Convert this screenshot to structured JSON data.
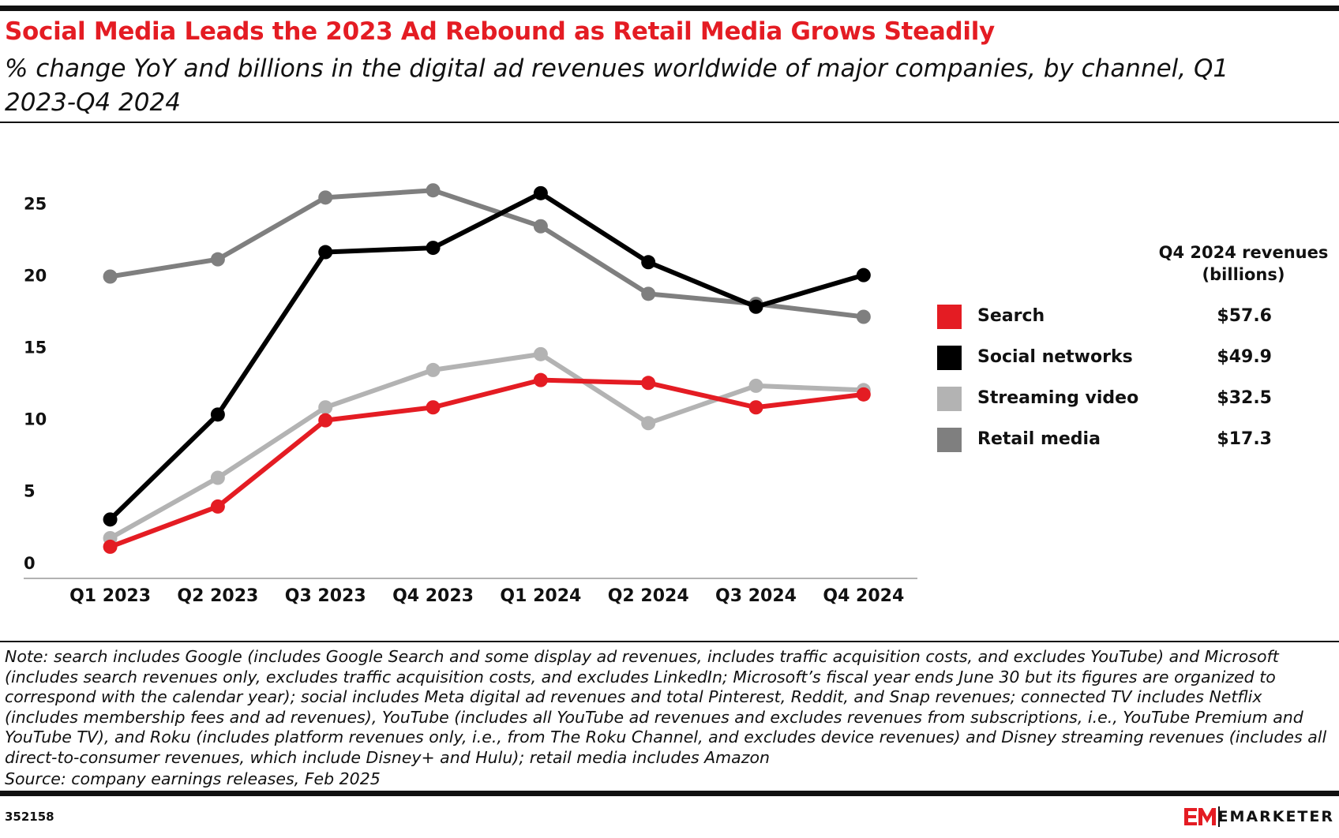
{
  "chart_data": {
    "type": "line",
    "title": "Social Media Leads the 2023 Ad Rebound as Retail Media Grows Steadily",
    "subtitle": "% change YoY and billions in the digital ad revenues worldwide of major companies, by channel, Q1 2023-Q4 2024",
    "categories": [
      "Q1 2023",
      "Q2 2023",
      "Q3 2023",
      "Q4 2023",
      "Q1 2024",
      "Q2 2024",
      "Q3 2024",
      "Q4 2024"
    ],
    "series": [
      {
        "name": "Search",
        "color": "#e41c23",
        "values": [
          1.2,
          4.0,
          10.0,
          10.9,
          12.8,
          12.6,
          10.9,
          11.8
        ],
        "q4_2024_revenue": "$57.6"
      },
      {
        "name": "Social networks",
        "color": "#000000",
        "values": [
          3.1,
          10.4,
          21.7,
          22.0,
          25.8,
          21.0,
          17.9,
          20.1
        ],
        "q4_2024_revenue": "$49.9"
      },
      {
        "name": "Streaming video",
        "color": "#b3b3b3",
        "values": [
          1.8,
          6.0,
          10.9,
          13.5,
          14.6,
          9.8,
          12.4,
          12.1
        ],
        "q4_2024_revenue": "$32.5"
      },
      {
        "name": "Retail media",
        "color": "#7f7f7f",
        "values": [
          20.0,
          21.2,
          25.5,
          26.0,
          23.5,
          18.8,
          18.1,
          17.2
        ],
        "q4_2024_revenue": "$17.3"
      }
    ],
    "revenue_header": "Q4 2024 revenues (billions)",
    "ylim": [
      -1,
      27
    ],
    "yticks": [
      0,
      5,
      10,
      15,
      20,
      25
    ],
    "grid": false,
    "note": "Note: search includes Google (includes Google Search and some display ad revenues, includes traffic acquisition costs, and excludes YouTube) and Microsoft (includes search revenues only, excludes traffic acquisition costs, and excludes LinkedIn; Microsoft’s fiscal year ends June 30 but its figures are organized to correspond with the calendar year); social includes Meta digital ad revenues and total Pinterest, Reddit, and Snap revenues; connected TV includes Netflix (includes membership fees and ad revenues), YouTube (includes all YouTube ad revenues and excludes revenues from subscriptions, i.e., YouTube Premium and YouTube TV), and Roku (includes platform revenues only, i.e., from The Roku Channel, and excludes device revenues) and Disney streaming revenues (includes all direct-to-consumer revenues, which include Disney+ and Hulu); retail media includes Amazon",
    "source": "Source: company earnings releases, Feb 2025",
    "chart_id": "352158",
    "brand": "EMARKETER"
  }
}
